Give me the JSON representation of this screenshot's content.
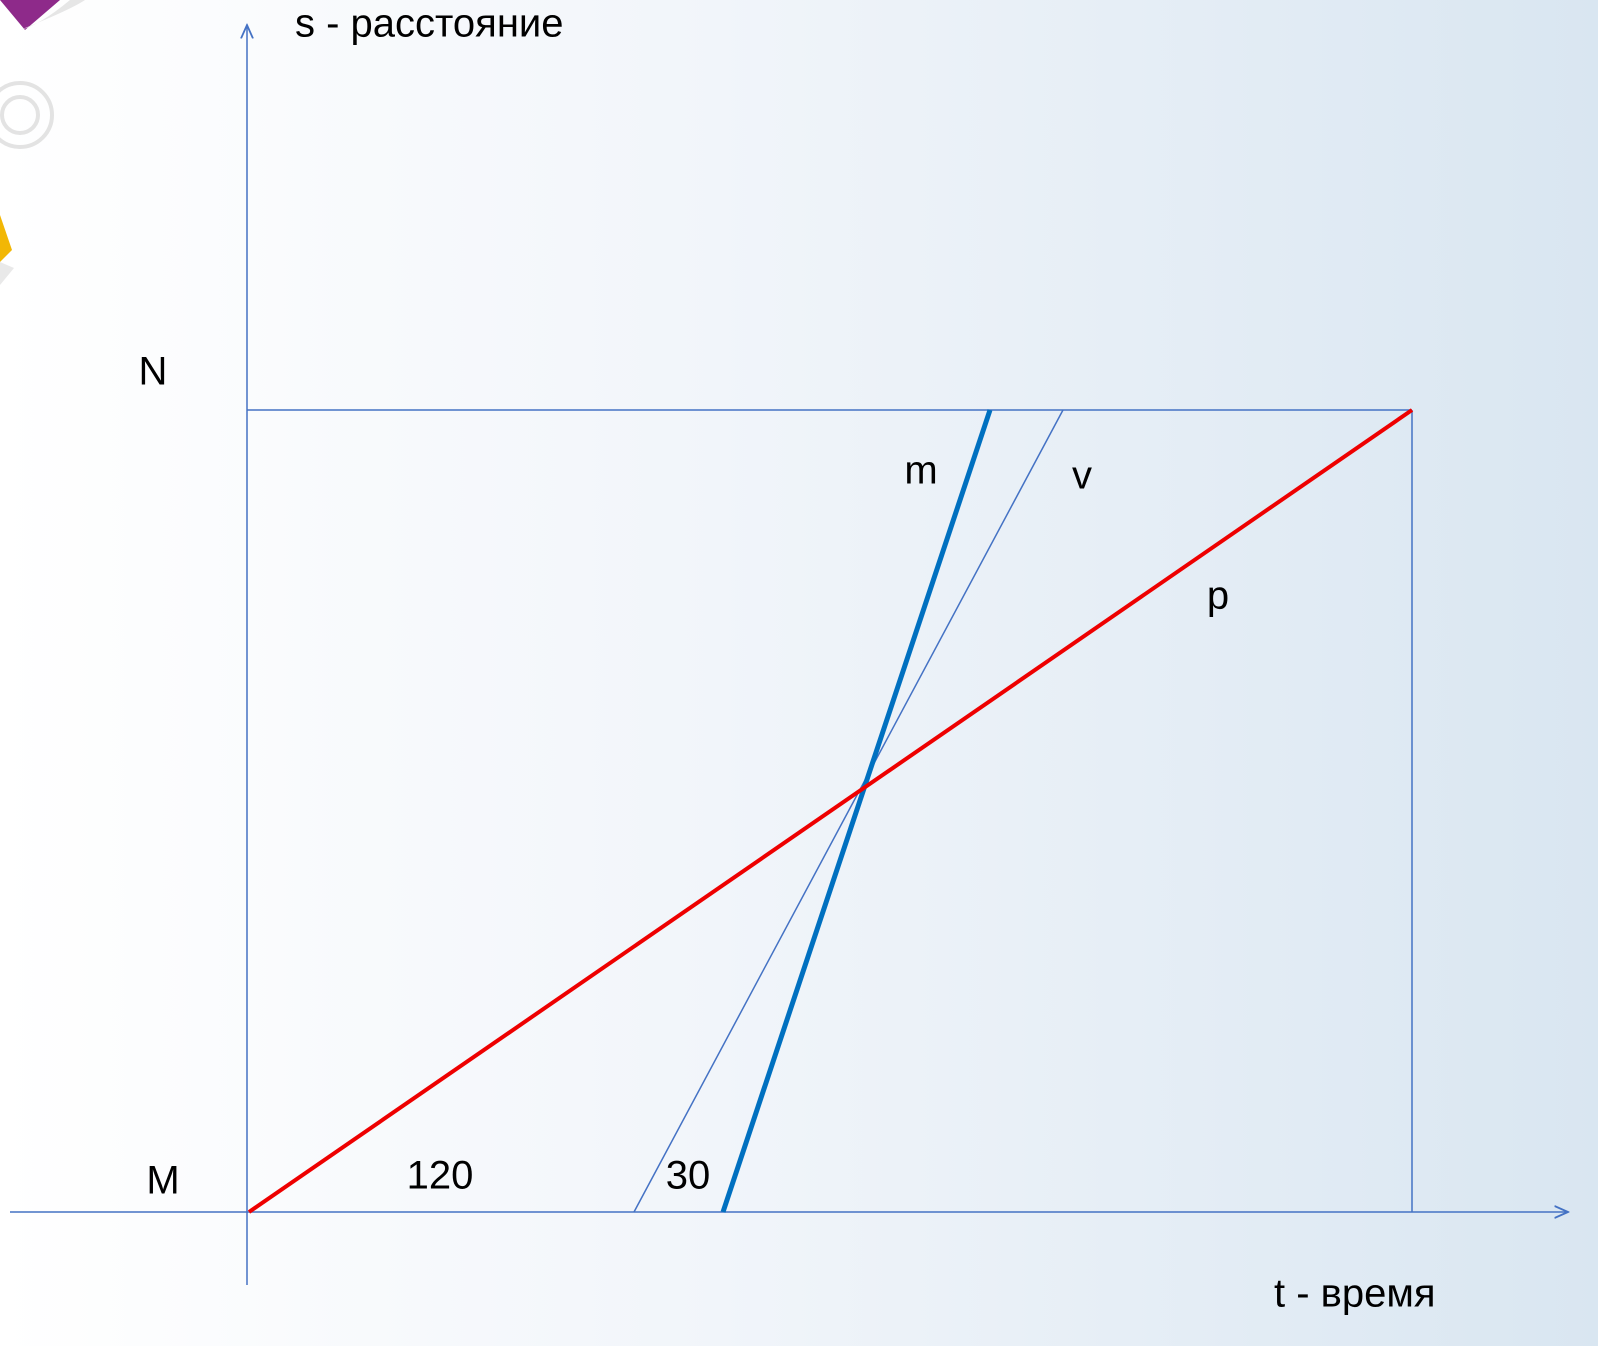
{
  "axes": {
    "y_label": "s - расстояние",
    "x_label": "t - время"
  },
  "points": {
    "top": "N",
    "bottom": "M"
  },
  "lines": [
    {
      "label": "m"
    },
    {
      "label": "v"
    },
    {
      "label": "p"
    }
  ],
  "segments": [
    "120",
    "30"
  ]
}
